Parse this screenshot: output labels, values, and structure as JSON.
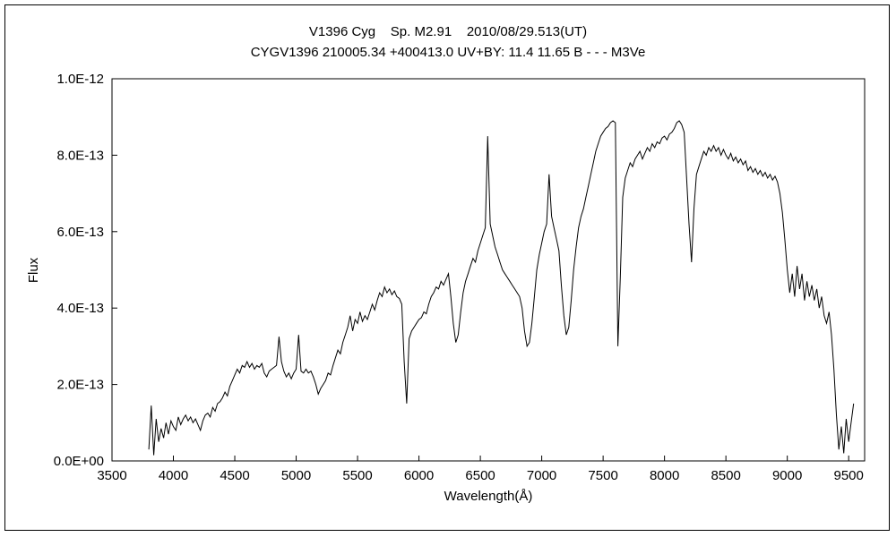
{
  "chart_data": {
    "type": "line",
    "title": "V1396 Cyg    Sp. M2.91    2010/08/29.513(UT)",
    "subtitle": "CYGV1396 210005.34 +400413.0 UV+BY: 11.4 11.65 B - - - M3Ve",
    "xlabel": "Wavelength(Å)",
    "ylabel": "Flux",
    "grid": false,
    "legend": "none",
    "line_color": "#000000",
    "xlim": [
      3500,
      9630
    ],
    "ylim": [
      0,
      10
    ],
    "flux_unit": "1e-13 (plot y values are flux / 1e-13)",
    "x_ticks": [
      3500,
      4000,
      4500,
      5000,
      5500,
      6000,
      6500,
      7000,
      7500,
      8000,
      8500,
      9000,
      9500
    ],
    "y_ticks": [
      {
        "value": 0,
        "label": "0.0E+00"
      },
      {
        "value": 2,
        "label": "2.0E-13"
      },
      {
        "value": 4,
        "label": "4.0E-13"
      },
      {
        "value": 6,
        "label": "6.0E-13"
      },
      {
        "value": 8,
        "label": "8.0E-13"
      },
      {
        "value": 10,
        "label": "1.0E-12"
      }
    ],
    "series": [
      {
        "name": "spectrum",
        "x_start": 3800,
        "x_step": 20,
        "flux": [
          0.3,
          1.45,
          0.15,
          1.1,
          0.5,
          0.85,
          0.6,
          1.0,
          0.7,
          1.05,
          0.9,
          0.8,
          1.15,
          0.95,
          1.1,
          1.2,
          1.05,
          1.15,
          1.0,
          1.1,
          0.95,
          0.8,
          1.05,
          1.2,
          1.25,
          1.15,
          1.4,
          1.3,
          1.5,
          1.55,
          1.65,
          1.8,
          1.7,
          1.95,
          2.1,
          2.25,
          2.4,
          2.3,
          2.5,
          2.45,
          2.6,
          2.45,
          2.55,
          2.4,
          2.5,
          2.45,
          2.55,
          2.3,
          2.2,
          2.35,
          2.4,
          2.45,
          2.5,
          3.25,
          2.6,
          2.35,
          2.2,
          2.3,
          2.15,
          2.3,
          2.4,
          3.3,
          2.35,
          2.3,
          2.4,
          2.3,
          2.35,
          2.2,
          2.0,
          1.75,
          1.9,
          2.0,
          2.1,
          2.3,
          2.25,
          2.5,
          2.7,
          2.9,
          2.8,
          3.1,
          3.3,
          3.5,
          3.8,
          3.4,
          3.7,
          3.6,
          3.9,
          3.65,
          3.8,
          3.7,
          3.9,
          4.1,
          3.95,
          4.2,
          4.4,
          4.3,
          4.55,
          4.4,
          4.5,
          4.35,
          4.45,
          4.3,
          4.25,
          4.1,
          2.6,
          1.5,
          3.2,
          3.4,
          3.5,
          3.6,
          3.7,
          3.75,
          3.9,
          3.85,
          4.1,
          4.3,
          4.4,
          4.55,
          4.5,
          4.7,
          4.6,
          4.75,
          4.9,
          4.3,
          3.6,
          3.1,
          3.3,
          3.9,
          4.4,
          4.7,
          4.9,
          5.1,
          5.3,
          5.2,
          5.5,
          5.7,
          5.9,
          6.1,
          8.5,
          6.2,
          5.9,
          5.6,
          5.4,
          5.2,
          5.0,
          4.9,
          4.8,
          4.7,
          4.6,
          4.5,
          4.4,
          4.3,
          4.0,
          3.4,
          3.0,
          3.1,
          3.6,
          4.3,
          5.0,
          5.4,
          5.7,
          6.0,
          6.2,
          7.5,
          6.4,
          6.1,
          5.8,
          5.5,
          4.6,
          3.8,
          3.3,
          3.5,
          4.2,
          5.0,
          5.6,
          6.1,
          6.4,
          6.6,
          6.9,
          7.2,
          7.5,
          7.8,
          8.1,
          8.3,
          8.5,
          8.6,
          8.7,
          8.75,
          8.85,
          8.9,
          8.85,
          3.0,
          4.8,
          6.9,
          7.4,
          7.6,
          7.8,
          7.7,
          7.9,
          8.0,
          8.1,
          7.9,
          8.05,
          8.2,
          8.1,
          8.3,
          8.2,
          8.35,
          8.3,
          8.45,
          8.5,
          8.4,
          8.55,
          8.6,
          8.7,
          8.85,
          8.9,
          8.8,
          8.6,
          7.4,
          6.2,
          5.2,
          6.6,
          7.5,
          7.7,
          7.9,
          8.1,
          8.0,
          8.2,
          8.1,
          8.25,
          8.1,
          8.2,
          8.0,
          8.15,
          8.0,
          7.9,
          8.05,
          7.85,
          7.95,
          7.8,
          7.9,
          7.75,
          7.85,
          7.6,
          7.7,
          7.55,
          7.65,
          7.5,
          7.6,
          7.45,
          7.55,
          7.4,
          7.5,
          7.35,
          7.45,
          7.3,
          7.0,
          6.5,
          5.8,
          5.0,
          4.4,
          4.9,
          4.3,
          5.1,
          4.5,
          4.9,
          4.2,
          4.7,
          4.3,
          4.6,
          4.2,
          4.5,
          4.0,
          4.3,
          3.8,
          3.6,
          3.9,
          3.3,
          2.4,
          1.2,
          0.3,
          0.9,
          0.2,
          1.1,
          0.5,
          1.0,
          1.5
        ]
      }
    ]
  }
}
